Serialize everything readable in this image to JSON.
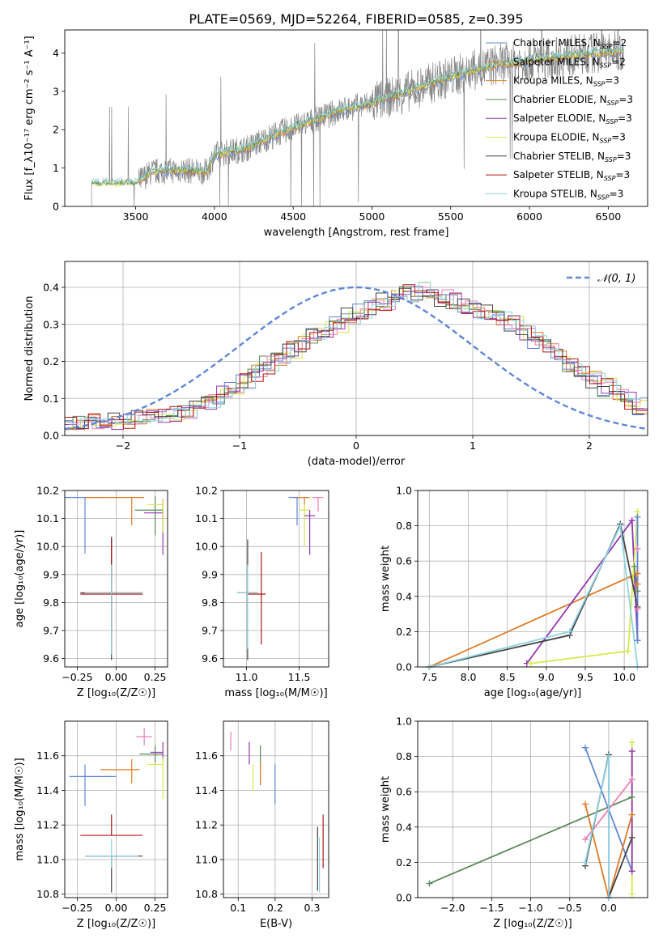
{
  "figure_title": "PLATE=0569, MJD=52264, FIBERID=0585, z=0.395",
  "colors": {
    "chabrier_miles": "#5f87d8",
    "salpeter_miles": "#e07b27",
    "kroupa_miles": "#d6862d",
    "chabrier_elodie": "#5a8a5a",
    "salpeter_elodie": "#9436b0",
    "kroupa_elodie": "#d6e84a",
    "chabrier_stelib": "#444444",
    "salpeter_stelib": "#b01515",
    "kroupa_stelib": "#8fd3e3",
    "pink": "#ea7fb4",
    "data": "#888888",
    "normal": "#5f87d8"
  },
  "chart_data": [
    {
      "id": "spectrum",
      "type": "line",
      "title": "PLATE=0569, MJD=52264, FIBERID=0585, z=0.395",
      "xlabel": "wavelength [Angstrom, rest frame]",
      "ylabel": "Flux [f_λ10⁻¹⁷ erg cm⁻² s⁻¹ A⁻¹]",
      "xlim": [
        3050,
        6750
      ],
      "ylim": [
        0,
        4.6
      ],
      "xticks": [
        "3500",
        "4000",
        "4500",
        "5000",
        "5500",
        "6000",
        "6500"
      ],
      "yticks": [
        "0",
        "1",
        "2",
        "3",
        "4"
      ],
      "grid": false,
      "legend_position": "top-right",
      "legend": [
        {
          "label": "Chabrier MILES, N",
          "sub": "SSP",
          "suffix": "=2"
        },
        {
          "label": "Salpeter MILES, N",
          "sub": "SSP",
          "suffix": "=2"
        },
        {
          "label": "Kroupa MILES, N",
          "sub": "SSP",
          "suffix": "=3"
        },
        {
          "label": "Chabrier ELODIE, N",
          "sub": "SSP",
          "suffix": "=3"
        },
        {
          "label": "Salpeter ELODIE, N",
          "sub": "SSP",
          "suffix": "=3"
        },
        {
          "label": "Kroupa ELODIE, N",
          "sub": "SSP",
          "suffix": "=3"
        },
        {
          "label": "Chabrier STELIB, N",
          "sub": "SSP",
          "suffix": "=3"
        },
        {
          "label": "Salpeter STELIB, N",
          "sub": "SSP",
          "suffix": "=3"
        },
        {
          "label": "Kroupa STELIB, N",
          "sub": "SSP",
          "suffix": "=3"
        }
      ],
      "data_x_start": 3220,
      "data_x_end": 6600,
      "continuum": [
        [
          3220,
          0.6
        ],
        [
          3500,
          0.6
        ],
        [
          3600,
          0.9
        ],
        [
          3800,
          0.95
        ],
        [
          3950,
          0.9
        ],
        [
          4000,
          1.35
        ],
        [
          4200,
          1.5
        ],
        [
          4400,
          1.9
        ],
        [
          4600,
          2.2
        ],
        [
          4800,
          2.5
        ],
        [
          5000,
          2.7
        ],
        [
          5200,
          2.95
        ],
        [
          5400,
          3.25
        ],
        [
          5600,
          3.5
        ],
        [
          5800,
          3.7
        ],
        [
          6000,
          3.8
        ],
        [
          6200,
          3.9
        ],
        [
          6400,
          4.0
        ],
        [
          6600,
          4.05
        ]
      ]
    },
    {
      "id": "residuals",
      "type": "line",
      "xlabel": "(data-model)/error",
      "ylabel": "Normed distribution",
      "xlim": [
        -2.5,
        2.5
      ],
      "ylim": [
        0,
        0.47
      ],
      "xticks": [
        "−2",
        "−1",
        "0",
        "1",
        "2"
      ],
      "yticks": [
        "0.0",
        "0.1",
        "0.2",
        "0.3",
        "0.4"
      ],
      "grid": true,
      "legend_position": "top-right",
      "legend": [
        {
          "label": "𝒩(0, 1)"
        }
      ],
      "bin_width": 0.1,
      "bins_start": -2.5,
      "base_hist": [
        0.03,
        0.03,
        0.035,
        0.035,
        0.04,
        0.04,
        0.045,
        0.05,
        0.055,
        0.06,
        0.07,
        0.08,
        0.095,
        0.11,
        0.13,
        0.15,
        0.17,
        0.19,
        0.21,
        0.23,
        0.25,
        0.27,
        0.29,
        0.3,
        0.32,
        0.33,
        0.35,
        0.36,
        0.37,
        0.385,
        0.39,
        0.38,
        0.37,
        0.36,
        0.35,
        0.34,
        0.33,
        0.32,
        0.3,
        0.28,
        0.26,
        0.24,
        0.21,
        0.19,
        0.17,
        0.15,
        0.13,
        0.11,
        0.095,
        0.08
      ],
      "normal_curve": {
        "mu": 0,
        "sigma": 1,
        "peak": 0.4
      }
    },
    {
      "id": "age_vs_Z",
      "type": "scatter",
      "xlabel": "Z [log₁₀(Z/Z☉)]",
      "ylabel": "age  [log₁₀(age/yr)]",
      "xlim": [
        -0.33,
        0.33
      ],
      "ylim": [
        9.57,
        10.2
      ],
      "xticks": [
        "−0.25",
        "0.00",
        "0.25"
      ],
      "yticks": [
        "9.6",
        "9.7",
        "9.8",
        "9.9",
        "10.0",
        "10.1",
        "10.2"
      ],
      "grid": true,
      "points": [
        {
          "series": "chabrier_miles",
          "x": -0.2,
          "y": 10.175,
          "xerr": [
            0.3,
            0.12
          ],
          "yerr": [
            0.2,
            0.0
          ]
        },
        {
          "series": "salpeter_miles",
          "x": 0.1,
          "y": 10.175,
          "xerr": [
            0.3,
            0.08
          ],
          "yerr": [
            0.1,
            0.0
          ]
        },
        {
          "series": "chabrier_elodie",
          "x": 0.25,
          "y": 10.13,
          "xerr": [
            0.13,
            0.05
          ],
          "yerr": [
            0.09,
            0.05
          ]
        },
        {
          "series": "salpeter_elodie",
          "x": 0.3,
          "y": 10.12,
          "xerr": [
            0.12,
            0.0
          ],
          "yerr": [
            0.15,
            0.05
          ]
        },
        {
          "series": "kroupa_elodie",
          "x": 0.3,
          "y": 10.15,
          "xerr": [
            0.1,
            0.0
          ],
          "yerr": [
            0.1,
            0.02
          ]
        },
        {
          "series": "chabrier_stelib",
          "x": -0.03,
          "y": 9.835,
          "xerr": [
            0.2,
            0.2
          ],
          "yerr": [
            0.24,
            0.2
          ]
        },
        {
          "series": "salpeter_stelib",
          "x": -0.03,
          "y": 9.83,
          "xerr": [
            0.2,
            0.2
          ],
          "yerr": [
            0.15,
            0.2
          ]
        },
        {
          "series": "kroupa_stelib",
          "x": -0.03,
          "y": 9.835,
          "xerr": [
            0.17,
            0.2
          ],
          "yerr": [
            0.22,
            0.1
          ]
        }
      ]
    },
    {
      "id": "age_vs_mass",
      "type": "scatter",
      "xlabel": "mass [log₁₀(M/M☉)]",
      "ylabel": "",
      "xlim": [
        10.78,
        11.78
      ],
      "ylim": [
        9.57,
        10.2
      ],
      "xticks": [
        "11.0",
        "11.5"
      ],
      "yticks": [
        "9.6",
        "9.7",
        "9.8",
        "9.9",
        "10.0",
        "10.1",
        "10.2"
      ],
      "grid": true,
      "points": [
        {
          "series": "chabrier_miles",
          "x": 11.48,
          "y": 10.175,
          "xerr": [
            0.08,
            0.08
          ],
          "yerr": [
            0.1,
            0.0
          ]
        },
        {
          "series": "salpeter_miles",
          "x": 11.55,
          "y": 10.175,
          "xerr": [
            0.07,
            0.05
          ],
          "yerr": [
            0.05,
            0.0
          ]
        },
        {
          "series": "pink",
          "x": 11.68,
          "y": 10.175,
          "xerr": [
            0.05,
            0.05
          ],
          "yerr": [
            0.05,
            0.0
          ]
        },
        {
          "series": "kroupa_elodie",
          "x": 11.55,
          "y": 10.13,
          "xerr": [
            0.05,
            0.05
          ],
          "yerr": [
            0.13,
            0.02
          ]
        },
        {
          "series": "salpeter_elodie",
          "x": 11.6,
          "y": 10.11,
          "xerr": [
            0.05,
            0.05
          ],
          "yerr": [
            0.14,
            0.02
          ]
        },
        {
          "series": "chabrier_stelib",
          "x": 11.01,
          "y": 9.835,
          "xerr": [
            0.1,
            0.1
          ],
          "yerr": [
            0.24,
            0.19
          ]
        },
        {
          "series": "salpeter_stelib",
          "x": 11.14,
          "y": 9.83,
          "xerr": [
            0.13,
            0.04
          ],
          "yerr": [
            0.18,
            0.15
          ]
        },
        {
          "series": "kroupa_stelib",
          "x": 11.01,
          "y": 9.835,
          "xerr": [
            0.1,
            0.1
          ],
          "yerr": [
            0.2,
            0.1
          ]
        }
      ]
    },
    {
      "id": "weight_vs_age",
      "type": "line",
      "xlabel": "age  [log₁₀(age/yr)]",
      "ylabel": "mass weight",
      "xlim": [
        7.35,
        10.3
      ],
      "ylim": [
        0,
        1.0
      ],
      "xticks": [
        "7.5",
        "8.0",
        "8.5",
        "9.0",
        "9.5",
        "10.0"
      ],
      "yticks": [
        "0.0",
        "0.2",
        "0.4",
        "0.6",
        "0.8",
        "1.0"
      ],
      "grid": true,
      "series": [
        {
          "name": "salpeter_miles",
          "points": [
            [
              7.5,
              0.0
            ],
            [
              10.17,
              0.53
            ],
            [
              10.17,
              0.47
            ]
          ]
        },
        {
          "name": "salpeter_elodie",
          "points": [
            [
              8.75,
              0.02
            ],
            [
              10.1,
              0.83
            ],
            [
              10.17,
              0.15
            ]
          ]
        },
        {
          "name": "kroupa_elodie",
          "points": [
            [
              8.8,
              0.02
            ],
            [
              10.05,
              0.09
            ],
            [
              10.17,
              0.88
            ]
          ]
        },
        {
          "name": "chabrier_stelib",
          "points": [
            [
              7.5,
              0.0
            ],
            [
              9.3,
              0.18
            ],
            [
              9.95,
              0.81
            ],
            [
              10.17,
              0.34
            ]
          ]
        },
        {
          "name": "kroupa_stelib",
          "points": [
            [
              7.5,
              0.0
            ],
            [
              9.3,
              0.2
            ],
            [
              9.95,
              0.8
            ],
            [
              10.17,
              0.0
            ]
          ]
        },
        {
          "name": "chabrier_elodie",
          "points": [
            [
              10.13,
              0.57
            ],
            [
              10.17,
              0.43
            ]
          ]
        },
        {
          "name": "pink",
          "points": [
            [
              10.17,
              0.67
            ],
            [
              10.17,
              0.33
            ]
          ]
        },
        {
          "name": "chabrier_miles",
          "points": [
            [
              10.17,
              0.85
            ],
            [
              10.17,
              0.15
            ]
          ]
        }
      ]
    },
    {
      "id": "mass_vs_Z",
      "type": "scatter",
      "xlabel": "Z [log₁₀(Z/Z☉)]",
      "ylabel": "mass [log₁₀(M/M☉)]",
      "xlim": [
        -0.33,
        0.33
      ],
      "ylim": [
        10.78,
        11.8
      ],
      "xticks": [
        "−0.25",
        "0.00",
        "0.25"
      ],
      "yticks": [
        "10.8",
        "11.0",
        "11.2",
        "11.4",
        "11.6"
      ],
      "grid": true,
      "points": [
        {
          "series": "pink",
          "x": 0.18,
          "y": 11.71,
          "xerr": [
            0.05,
            0.05
          ],
          "yerr": [
            0.05,
            0.05
          ]
        },
        {
          "series": "chabrier_elodie",
          "x": 0.25,
          "y": 11.61,
          "xerr": [
            0.1,
            0.05
          ],
          "yerr": [
            0.05,
            0.05
          ]
        },
        {
          "series": "salpeter_elodie",
          "x": 0.3,
          "y": 11.62,
          "xerr": [
            0.08,
            0.0
          ],
          "yerr": [
            0.05,
            0.06
          ]
        },
        {
          "series": "kroupa_elodie",
          "x": 0.3,
          "y": 11.55,
          "xerr": [
            0.1,
            0.0
          ],
          "yerr": [
            0.2,
            0.04
          ]
        },
        {
          "series": "salpeter_miles",
          "x": 0.1,
          "y": 11.52,
          "xerr": [
            0.2,
            0.05
          ],
          "yerr": [
            0.08,
            0.06
          ]
        },
        {
          "series": "chabrier_miles",
          "x": -0.2,
          "y": 11.48,
          "xerr": [
            0.1,
            0.2
          ],
          "yerr": [
            0.17,
            0.07
          ]
        },
        {
          "series": "salpeter_stelib",
          "x": -0.03,
          "y": 11.14,
          "xerr": [
            0.2,
            0.2
          ],
          "yerr": [
            0.0,
            0.12
          ]
        },
        {
          "series": "chabrier_stelib",
          "x": -0.03,
          "y": 11.02,
          "xerr": [
            0.17,
            0.2
          ],
          "yerr": [
            0.21,
            0.0
          ]
        },
        {
          "series": "kroupa_stelib",
          "x": -0.03,
          "y": 11.02,
          "xerr": [
            0.17,
            0.17
          ],
          "yerr": [
            0.07,
            0.1
          ]
        }
      ]
    },
    {
      "id": "mass_vs_ebv",
      "type": "scatter",
      "xlabel": "E(B-V)",
      "ylabel": "",
      "xlim": [
        0.06,
        0.345
      ],
      "ylim": [
        10.78,
        11.8
      ],
      "xticks": [
        "0.1",
        "0.2",
        "0.3"
      ],
      "yticks": [
        "10.8",
        "11.0",
        "11.2",
        "11.4",
        "11.6"
      ],
      "grid": true,
      "points": [
        {
          "series": "pink",
          "x": 0.08,
          "y": 11.68,
          "xerr": [
            0.0,
            0.0
          ],
          "yerr": [
            0.05,
            0.06
          ]
        },
        {
          "series": "salpeter_elodie",
          "x": 0.13,
          "y": 11.6,
          "xerr": [
            0.0,
            0.0
          ],
          "yerr": [
            0.05,
            0.08
          ]
        },
        {
          "series": "kroupa_elodie",
          "x": 0.14,
          "y": 11.5,
          "xerr": [
            0.0,
            0.0
          ],
          "yerr": [
            0.1,
            0.05
          ]
        },
        {
          "series": "chabrier_elodie",
          "x": 0.16,
          "y": 11.55,
          "xerr": [
            0.0,
            0.0
          ],
          "yerr": [
            0.12,
            0.11
          ]
        },
        {
          "series": "salpeter_miles",
          "x": 0.16,
          "y": 11.5,
          "xerr": [
            0.0,
            0.0
          ],
          "yerr": [
            0.06,
            0.06
          ]
        },
        {
          "series": "chabrier_miles",
          "x": 0.2,
          "y": 11.45,
          "xerr": [
            0.0,
            0.0
          ],
          "yerr": [
            0.13,
            0.1
          ]
        },
        {
          "series": "chabrier_stelib",
          "x": 0.315,
          "y": 11.0,
          "xerr": [
            0.0,
            0.0
          ],
          "yerr": [
            0.18,
            0.19
          ]
        },
        {
          "series": "kroupa_stelib",
          "x": 0.32,
          "y": 10.98,
          "xerr": [
            0.0,
            0.0
          ],
          "yerr": [
            0.17,
            0.15
          ]
        },
        {
          "series": "salpeter_stelib",
          "x": 0.33,
          "y": 11.1,
          "xerr": [
            0.0,
            0.0
          ],
          "yerr": [
            0.15,
            0.16
          ]
        }
      ]
    },
    {
      "id": "weight_vs_Z",
      "type": "line",
      "xlabel": "Z [log₁₀(Z/Z☉)]",
      "ylabel": "mass weight",
      "xlim": [
        -2.45,
        0.5
      ],
      "ylim": [
        0,
        1.0
      ],
      "xticks": [
        "−2.0",
        "−1.5",
        "−1.0",
        "−0.5",
        "0.0"
      ],
      "yticks": [
        "0.0",
        "0.2",
        "0.4",
        "0.6",
        "0.8",
        "1.0"
      ],
      "grid": true,
      "series": [
        {
          "name": "chabrier_elodie",
          "points": [
            [
              -2.3,
              0.08
            ],
            [
              0.3,
              0.57
            ]
          ]
        },
        {
          "name": "chabrier_miles",
          "points": [
            [
              -0.3,
              0.85
            ],
            [
              0.3,
              0.15
            ]
          ]
        },
        {
          "name": "pink",
          "points": [
            [
              -0.3,
              0.33
            ],
            [
              0.3,
              0.67
            ]
          ]
        },
        {
          "name": "salpeter_miles",
          "points": [
            [
              -0.3,
              0.53
            ],
            [
              0.0,
              0.0
            ],
            [
              0.3,
              0.47
            ]
          ]
        },
        {
          "name": "chabrier_stelib",
          "points": [
            [
              -0.3,
              0.18
            ],
            [
              0.0,
              0.81
            ],
            [
              0.0,
              0.0
            ],
            [
              0.3,
              0.34
            ]
          ]
        },
        {
          "name": "kroupa_stelib",
          "points": [
            [
              -0.3,
              0.2
            ],
            [
              0.0,
              0.8
            ],
            [
              0.0,
              0.0
            ]
          ]
        },
        {
          "name": "kroupa_elodie",
          "points": [
            [
              0.3,
              0.88
            ],
            [
              0.3,
              0.02
            ]
          ]
        },
        {
          "name": "salpeter_elodie",
          "points": [
            [
              0.3,
              0.83
            ],
            [
              0.3,
              0.15
            ]
          ]
        }
      ]
    }
  ]
}
